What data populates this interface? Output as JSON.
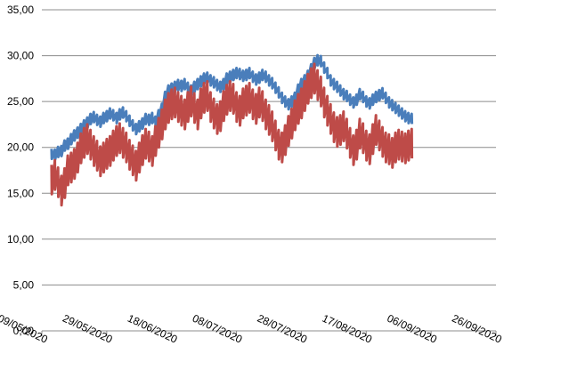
{
  "chart_data": {
    "type": "line",
    "title": "",
    "xlabel": "",
    "ylabel": "",
    "grid": true,
    "legend": "none",
    "x_range": [
      "2020-05-09",
      "2020-09-26"
    ],
    "ylim": [
      0,
      35
    ],
    "y_ticks": [
      "0,00",
      "5,00",
      "10,00",
      "15,00",
      "20,00",
      "25,00",
      "30,00",
      "35,00"
    ],
    "x_ticks": [
      {
        "date": "2020-05-09",
        "label": "09/05/2020"
      },
      {
        "date": "2020-05-29",
        "label": "29/05/2020"
      },
      {
        "date": "2020-06-18",
        "label": "18/06/2020"
      },
      {
        "date": "2020-07-08",
        "label": "08/07/2020"
      },
      {
        "date": "2020-07-28",
        "label": "28/07/2020"
      },
      {
        "date": "2020-08-17",
        "label": "17/08/2020"
      },
      {
        "date": "2020-09-06",
        "label": "06/09/2020"
      },
      {
        "date": "2020-09-26",
        "label": "26/09/2020"
      }
    ],
    "series": [
      {
        "color": "#4a7ebb",
        "x_start": "2020-05-12",
        "values": [
          19.3,
          19.2,
          19.5,
          19.6,
          20.2,
          20.4,
          20.9,
          21.3,
          21.6,
          22.0,
          22.4,
          22.7,
          23.1,
          23.3,
          23.0,
          22.8,
          23.2,
          23.4,
          23.7,
          23.5,
          23.2,
          23.6,
          23.8,
          23.4,
          22.9,
          22.4,
          22.0,
          22.3,
          22.6,
          23.1,
          23.0,
          23.2,
          22.8,
          23.5,
          24.2,
          25.5,
          26.2,
          26.4,
          26.6,
          26.8,
          26.7,
          26.9,
          26.5,
          26.2,
          26.6,
          26.9,
          27.2,
          27.5,
          27.6,
          27.3,
          27.1,
          26.8,
          26.6,
          26.9,
          27.5,
          27.7,
          27.9,
          28.1,
          28.0,
          27.8,
          27.9,
          28.1,
          27.7,
          27.4,
          27.6,
          27.9,
          27.7,
          27.3,
          27.0,
          26.5,
          26.0,
          25.4,
          25.0,
          24.7,
          25.0,
          25.4,
          26.3,
          26.9,
          27.3,
          27.8,
          28.5,
          29.2,
          29.5,
          29.4,
          28.7,
          28.1,
          27.3,
          26.9,
          26.6,
          26.2,
          25.8,
          25.6,
          25.2,
          24.9,
          25.2,
          25.8,
          25.5,
          25.0,
          24.8,
          25.2,
          25.5,
          25.7,
          25.9,
          25.4,
          24.9,
          24.6,
          24.3,
          24.0,
          23.7,
          23.4,
          23.2,
          23.1
        ]
      },
      {
        "color": "#be4b48",
        "x_start": "2020-05-12",
        "values": [
          16.5,
          17.0,
          16.2,
          15.3,
          16.1,
          17.5,
          17.8,
          18.2,
          18.9,
          19.9,
          20.5,
          20.9,
          20.3,
          19.6,
          19.1,
          18.5,
          18.9,
          19.3,
          19.6,
          20.2,
          20.7,
          21.0,
          20.5,
          20.0,
          19.2,
          18.6,
          18.0,
          18.9,
          19.7,
          20.4,
          20.1,
          19.6,
          20.7,
          21.6,
          22.5,
          23.6,
          24.3,
          24.7,
          24.9,
          24.4,
          24.0,
          23.6,
          24.4,
          25.0,
          24.3,
          23.6,
          24.8,
          25.4,
          25.6,
          24.4,
          23.7,
          23.1,
          23.4,
          24.5,
          25.2,
          25.6,
          25.3,
          24.4,
          24.0,
          24.8,
          25.1,
          25.4,
          24.7,
          24.2,
          24.9,
          24.5,
          23.6,
          23.0,
          22.3,
          21.3,
          20.3,
          20.0,
          20.8,
          21.8,
          22.6,
          23.5,
          24.2,
          24.8,
          25.6,
          26.4,
          27.0,
          27.5,
          26.8,
          26.1,
          24.9,
          24.0,
          23.1,
          22.2,
          21.7,
          21.9,
          22.3,
          21.5,
          20.5,
          19.7,
          20.3,
          21.5,
          21.0,
          20.2,
          19.8,
          20.9,
          21.9,
          21.3,
          20.6,
          20.0,
          19.8,
          19.4,
          20.0,
          20.3,
          20.1,
          19.9,
          20.2,
          20.4
        ]
      }
    ]
  }
}
